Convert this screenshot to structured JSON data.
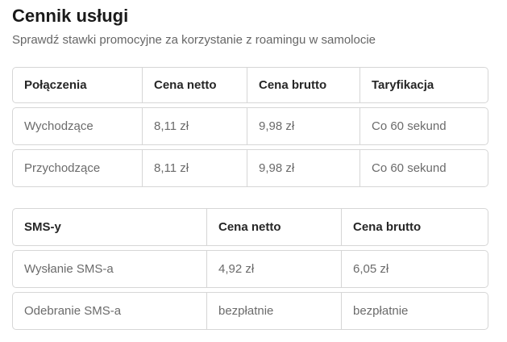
{
  "page": {
    "title": "Cennik usługi",
    "subtitle": "Sprawdź stawki promocyjne za korzystanie z roamingu w samolocie"
  },
  "tables": [
    {
      "name": "calls",
      "headers": [
        "Połączenia",
        "Cena netto",
        "Cena brutto",
        "Taryfikacja"
      ],
      "rows": [
        [
          "Wychodzące",
          "8,11 zł",
          "9,98 zł",
          "Co 60 sekund"
        ],
        [
          "Przychodzące",
          "8,11 zł",
          "9,98 zł",
          "Co 60 sekund"
        ]
      ]
    },
    {
      "name": "sms",
      "headers": [
        "SMS-y",
        "Cena netto",
        "Cena brutto"
      ],
      "rows": [
        [
          "Wysłanie SMS-a",
          "4,92 zł",
          "6,05 zł"
        ],
        [
          "Odebranie SMS-a",
          "bezpłatnie",
          "bezpłatnie"
        ]
      ]
    }
  ],
  "colors": {
    "heading": "#1a1a1a",
    "subtitle": "#666666",
    "header_text": "#262626",
    "cell_text": "#6b6b6b",
    "border": "#d6d6d6",
    "background": "#ffffff"
  }
}
